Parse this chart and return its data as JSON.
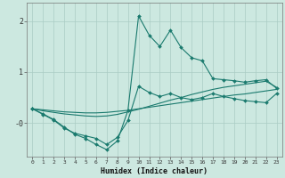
{
  "xlabel": "Humidex (Indice chaleur)",
  "bg_color": "#cce8e0",
  "plot_bg_color": "#cce8e0",
  "grid_color": "#aaccc4",
  "line_color": "#1a7a6e",
  "xlim": [
    -0.5,
    23.5
  ],
  "ylim": [
    -0.65,
    2.35
  ],
  "x_ticks": [
    0,
    1,
    2,
    3,
    4,
    5,
    6,
    7,
    8,
    9,
    10,
    11,
    12,
    13,
    14,
    15,
    16,
    17,
    18,
    19,
    20,
    21,
    22,
    23
  ],
  "y_ticks": [
    0.0,
    1.0,
    2.0
  ],
  "y_tick_labels": [
    "-0",
    "1",
    "2"
  ],
  "line1_x": [
    0,
    1,
    2,
    3,
    4,
    5,
    6,
    7,
    8,
    9,
    10,
    11,
    12,
    13,
    14,
    15,
    16,
    17,
    18,
    19,
    20,
    21,
    22,
    23
  ],
  "line1_y": [
    0.28,
    0.26,
    0.24,
    0.22,
    0.21,
    0.2,
    0.2,
    0.21,
    0.23,
    0.25,
    0.28,
    0.31,
    0.34,
    0.37,
    0.4,
    0.43,
    0.46,
    0.49,
    0.52,
    0.55,
    0.57,
    0.6,
    0.63,
    0.66
  ],
  "line2_x": [
    0,
    1,
    2,
    3,
    4,
    5,
    6,
    7,
    8,
    9,
    10,
    11,
    12,
    13,
    14,
    15,
    16,
    17,
    18,
    19,
    20,
    21,
    22,
    23
  ],
  "line2_y": [
    0.28,
    0.24,
    0.21,
    0.18,
    0.16,
    0.14,
    0.13,
    0.14,
    0.17,
    0.22,
    0.27,
    0.33,
    0.39,
    0.45,
    0.5,
    0.56,
    0.61,
    0.66,
    0.7,
    0.73,
    0.76,
    0.79,
    0.82,
    0.7
  ],
  "line3_x": [
    0,
    1,
    2,
    3,
    4,
    5,
    6,
    7,
    8,
    9,
    10,
    11,
    12,
    13,
    14,
    15,
    16,
    17,
    18,
    19,
    20,
    21,
    22,
    23
  ],
  "line3_y": [
    0.28,
    0.18,
    0.07,
    -0.08,
    -0.22,
    -0.3,
    -0.42,
    -0.52,
    -0.35,
    0.25,
    2.1,
    1.72,
    1.5,
    1.82,
    1.48,
    1.28,
    1.22,
    0.87,
    0.85,
    0.83,
    0.8,
    0.83,
    0.85,
    0.68
  ],
  "line4_x": [
    0,
    1,
    2,
    3,
    4,
    5,
    6,
    7,
    8,
    9,
    10,
    11,
    12,
    13,
    14,
    15,
    16,
    17,
    18,
    19,
    20,
    21,
    22,
    23
  ],
  "line4_y": [
    0.28,
    0.17,
    0.06,
    -0.1,
    -0.2,
    -0.25,
    -0.3,
    -0.42,
    -0.28,
    0.05,
    0.72,
    0.6,
    0.52,
    0.58,
    0.5,
    0.46,
    0.5,
    0.58,
    0.52,
    0.48,
    0.44,
    0.42,
    0.4,
    0.58
  ],
  "figsize": [
    3.2,
    2.0
  ],
  "dpi": 100
}
